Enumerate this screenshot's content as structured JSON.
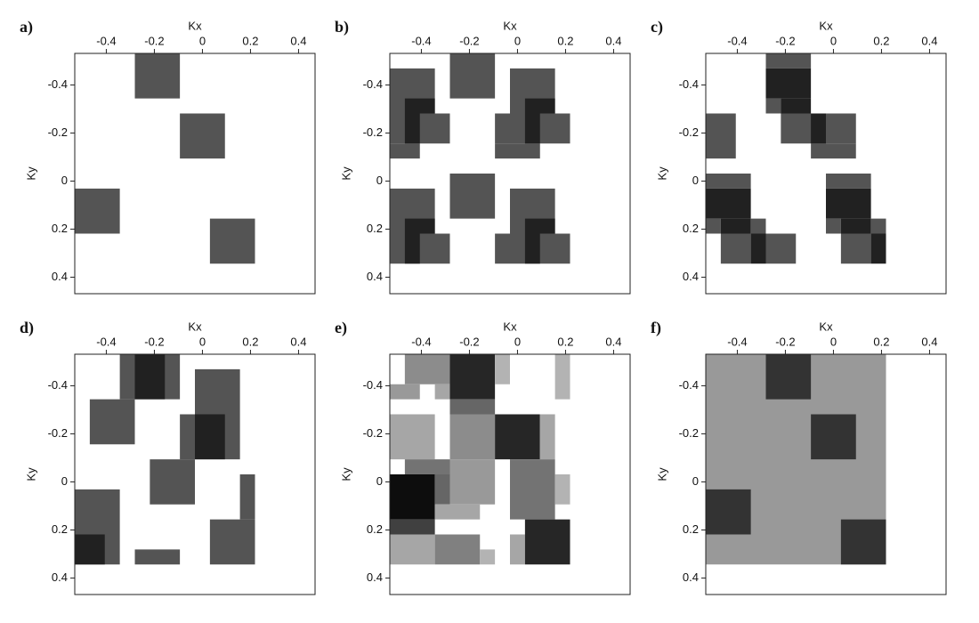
{
  "chart_data": [
    {
      "type": "heatmap",
      "label": "a)",
      "xlabel": "Kx",
      "ylabel": "Ky",
      "xlim": [
        -0.53125,
        0.46875
      ],
      "ylim": [
        -0.53125,
        0.46875
      ],
      "xticks": [
        -0.4,
        -0.2,
        0,
        0.2,
        0.4
      ],
      "yticks": [
        -0.4,
        -0.2,
        0,
        0.2,
        0.4
      ],
      "cells": [
        [
          -0.28125,
          -0.09375,
          -0.53125,
          -0.34375,
          0.67
        ],
        [
          -0.09375,
          0.09375,
          -0.28125,
          -0.09375,
          0.67
        ],
        [
          -0.53125,
          -0.34375,
          0.03125,
          0.21875,
          0.67
        ],
        [
          0.03125,
          0.21875,
          0.15625,
          0.34375,
          0.67
        ]
      ]
    },
    {
      "type": "heatmap",
      "label": "b)",
      "xlabel": "Kx",
      "ylabel": "Ky",
      "xlim": [
        -0.53125,
        0.46875
      ],
      "ylim": [
        -0.53125,
        0.46875
      ],
      "xticks": [
        -0.4,
        -0.2,
        0,
        0.2,
        0.4
      ],
      "yticks": [
        -0.4,
        -0.2,
        0,
        0.2,
        0.4
      ],
      "cells": [
        [
          -0.53125,
          -0.34375,
          -0.46875,
          -0.28125,
          0.67
        ],
        [
          -0.53125,
          -0.28125,
          -0.28125,
          -0.15625,
          0.67
        ],
        [
          -0.53125,
          -0.40625,
          -0.15625,
          -0.09375,
          0.67
        ],
        [
          -0.28125,
          -0.09375,
          -0.53125,
          -0.34375,
          0.67
        ],
        [
          -0.03125,
          0.15625,
          -0.46875,
          -0.28125,
          0.67
        ],
        [
          -0.09375,
          0.21875,
          -0.28125,
          -0.15625,
          0.67
        ],
        [
          -0.09375,
          0.09375,
          -0.15625,
          -0.09375,
          0.67
        ],
        [
          -0.46875,
          -0.34375,
          -0.34375,
          -0.28125,
          0.87
        ],
        [
          -0.46875,
          -0.40625,
          -0.28125,
          -0.15625,
          0.87
        ],
        [
          0.03125,
          0.15625,
          -0.34375,
          -0.28125,
          0.87
        ],
        [
          0.03125,
          0.09375,
          -0.28125,
          -0.15625,
          0.87
        ],
        [
          -0.28125,
          -0.09375,
          -0.03125,
          0.15625,
          0.67
        ],
        [
          -0.53125,
          -0.34375,
          0.03125,
          0.21875,
          0.67
        ],
        [
          -0.53125,
          -0.28125,
          0.21875,
          0.34375,
          0.67
        ],
        [
          -0.46875,
          -0.34375,
          0.15625,
          0.21875,
          0.87
        ],
        [
          -0.46875,
          -0.40625,
          0.21875,
          0.34375,
          0.87
        ],
        [
          -0.03125,
          0.15625,
          0.03125,
          0.21875,
          0.67
        ],
        [
          -0.09375,
          0.21875,
          0.21875,
          0.34375,
          0.67
        ],
        [
          0.03125,
          0.15625,
          0.15625,
          0.21875,
          0.87
        ],
        [
          0.03125,
          0.09375,
          0.21875,
          0.34375,
          0.87
        ]
      ]
    },
    {
      "type": "heatmap",
      "label": "c)",
      "xlabel": "Kx",
      "ylabel": "Ky",
      "xlim": [
        -0.53125,
        0.46875
      ],
      "ylim": [
        -0.53125,
        0.46875
      ],
      "xticks": [
        -0.4,
        -0.2,
        0,
        0.2,
        0.4
      ],
      "yticks": [
        -0.4,
        -0.2,
        0,
        0.2,
        0.4
      ],
      "cells": [
        [
          -0.28125,
          -0.09375,
          -0.53125,
          -0.46875,
          0.67
        ],
        [
          -0.28125,
          -0.21875,
          -0.34375,
          -0.28125,
          0.67
        ],
        [
          -0.28125,
          -0.09375,
          -0.46875,
          -0.34375,
          0.87
        ],
        [
          -0.21875,
          -0.09375,
          -0.34375,
          -0.28125,
          0.87
        ],
        [
          -0.21875,
          0.09375,
          -0.28125,
          -0.15625,
          0.67
        ],
        [
          -0.09375,
          0.09375,
          -0.15625,
          -0.09375,
          0.67
        ],
        [
          -0.09375,
          -0.03125,
          -0.28125,
          -0.15625,
          0.87
        ],
        [
          -0.53125,
          -0.40625,
          -0.28125,
          -0.09375,
          0.67
        ],
        [
          -0.53125,
          -0.34375,
          -0.03125,
          0.03125,
          0.67
        ],
        [
          -0.53125,
          -0.34375,
          0.03125,
          0.15625,
          0.87
        ],
        [
          -0.53125,
          -0.46875,
          0.15625,
          0.21875,
          0.67
        ],
        [
          -0.46875,
          -0.34375,
          0.15625,
          0.21875,
          0.87
        ],
        [
          -0.34375,
          -0.28125,
          0.15625,
          0.21875,
          0.67
        ],
        [
          -0.46875,
          -0.34375,
          0.21875,
          0.34375,
          0.67
        ],
        [
          -0.34375,
          -0.28125,
          0.21875,
          0.34375,
          0.87
        ],
        [
          -0.28125,
          -0.15625,
          0.21875,
          0.34375,
          0.67
        ],
        [
          -0.03125,
          0.15625,
          -0.03125,
          0.03125,
          0.67
        ],
        [
          -0.03125,
          0.15625,
          0.03125,
          0.15625,
          0.87
        ],
        [
          -0.03125,
          0.03125,
          0.15625,
          0.21875,
          0.67
        ],
        [
          0.03125,
          0.15625,
          0.15625,
          0.21875,
          0.87
        ],
        [
          0.15625,
          0.21875,
          0.15625,
          0.21875,
          0.67
        ],
        [
          0.03125,
          0.15625,
          0.21875,
          0.34375,
          0.67
        ],
        [
          0.15625,
          0.21875,
          0.21875,
          0.34375,
          0.87
        ]
      ]
    },
    {
      "type": "heatmap",
      "label": "d)",
      "xlabel": "Kx",
      "ylabel": "Ky",
      "xlim": [
        -0.53125,
        0.46875
      ],
      "ylim": [
        -0.53125,
        0.46875
      ],
      "xticks": [
        -0.4,
        -0.2,
        0,
        0.2,
        0.4
      ],
      "yticks": [
        -0.4,
        -0.2,
        0,
        0.2,
        0.4
      ],
      "cells": [
        [
          -0.34375,
          -0.09375,
          -0.53125,
          -0.34375,
          0.67
        ],
        [
          -0.28125,
          -0.15625,
          -0.53125,
          -0.34375,
          0.87
        ],
        [
          -0.46875,
          -0.28125,
          -0.34375,
          -0.15625,
          0.67
        ],
        [
          -0.03125,
          0.15625,
          -0.46875,
          -0.28125,
          0.67
        ],
        [
          -0.09375,
          0.15625,
          -0.28125,
          -0.09375,
          0.67
        ],
        [
          -0.03125,
          0.09375,
          -0.28125,
          -0.09375,
          0.87
        ],
        [
          -0.21875,
          -0.03125,
          -0.09375,
          0.09375,
          0.67
        ],
        [
          0.15625,
          0.21875,
          -0.03125,
          0.15625,
          0.67
        ],
        [
          -0.53125,
          -0.34375,
          0.03125,
          0.34375,
          0.67
        ],
        [
          -0.53125,
          -0.40625,
          0.21875,
          0.34375,
          0.87
        ],
        [
          0.03125,
          0.21875,
          0.15625,
          0.34375,
          0.67
        ],
        [
          -0.28125,
          -0.09375,
          0.28125,
          0.34375,
          0.67
        ]
      ]
    },
    {
      "type": "heatmap",
      "label": "e)",
      "xlabel": "Kx",
      "ylabel": "Ky",
      "xlim": [
        -0.53125,
        0.46875
      ],
      "ylim": [
        -0.53125,
        0.46875
      ],
      "xticks": [
        -0.4,
        -0.2,
        0,
        0.2,
        0.4
      ],
      "yticks": [
        -0.4,
        -0.2,
        0,
        0.2,
        0.4
      ],
      "cells": [
        [
          -0.46875,
          -0.28125,
          -0.53125,
          -0.40625,
          0.45
        ],
        [
          -0.53125,
          -0.40625,
          -0.40625,
          -0.34375,
          0.4
        ],
        [
          -0.34375,
          -0.28125,
          -0.40625,
          -0.34375,
          0.35
        ],
        [
          -0.28125,
          -0.09375,
          -0.53125,
          -0.34375,
          0.85
        ],
        [
          -0.09375,
          -0.03125,
          -0.53125,
          -0.40625,
          0.3
        ],
        [
          0.15625,
          0.21875,
          -0.53125,
          -0.34375,
          0.3
        ],
        [
          -0.28125,
          -0.09375,
          -0.34375,
          -0.28125,
          0.6
        ],
        [
          -0.28125,
          -0.09375,
          -0.28125,
          -0.09375,
          0.45
        ],
        [
          -0.09375,
          0.09375,
          -0.28125,
          -0.09375,
          0.85
        ],
        [
          0.09375,
          0.15625,
          -0.28125,
          -0.09375,
          0.35
        ],
        [
          -0.53125,
          -0.34375,
          -0.28125,
          -0.09375,
          0.35
        ],
        [
          -0.46875,
          -0.28125,
          -0.09375,
          -0.03125,
          0.55
        ],
        [
          -0.28125,
          -0.09375,
          -0.09375,
          0.09375,
          0.4
        ],
        [
          -0.03125,
          0.15625,
          -0.09375,
          0.15625,
          0.55
        ],
        [
          0.15625,
          0.21875,
          -0.03125,
          0.09375,
          0.3
        ],
        [
          -0.53125,
          -0.34375,
          -0.03125,
          0.15625,
          0.95
        ],
        [
          -0.53125,
          -0.34375,
          0.15625,
          0.21875,
          0.75
        ],
        [
          -0.34375,
          -0.28125,
          -0.03125,
          0.09375,
          0.6
        ],
        [
          -0.34375,
          -0.15625,
          0.09375,
          0.15625,
          0.35
        ],
        [
          -0.53125,
          -0.34375,
          0.21875,
          0.34375,
          0.35
        ],
        [
          -0.34375,
          -0.15625,
          0.21875,
          0.34375,
          0.5
        ],
        [
          -0.15625,
          -0.09375,
          0.28125,
          0.34375,
          0.3
        ],
        [
          -0.03125,
          0.03125,
          0.21875,
          0.34375,
          0.35
        ],
        [
          0.03125,
          0.21875,
          0.15625,
          0.34375,
          0.85
        ]
      ]
    },
    {
      "type": "heatmap",
      "label": "f)",
      "xlabel": "Kx",
      "ylabel": "Ky",
      "xlim": [
        -0.53125,
        0.46875
      ],
      "ylim": [
        -0.53125,
        0.46875
      ],
      "xticks": [
        -0.4,
        -0.2,
        0,
        0.2,
        0.4
      ],
      "yticks": [
        -0.4,
        -0.2,
        0,
        0.2,
        0.4
      ],
      "cells": [
        [
          -0.53125,
          0.21875,
          -0.53125,
          0.34375,
          0.4
        ],
        [
          -0.28125,
          -0.09375,
          -0.53125,
          -0.34375,
          0.8
        ],
        [
          -0.09375,
          0.09375,
          -0.28125,
          -0.09375,
          0.8
        ],
        [
          -0.53125,
          -0.34375,
          0.03125,
          0.21875,
          0.8
        ],
        [
          0.03125,
          0.21875,
          0.15625,
          0.34375,
          0.8
        ]
      ]
    }
  ]
}
